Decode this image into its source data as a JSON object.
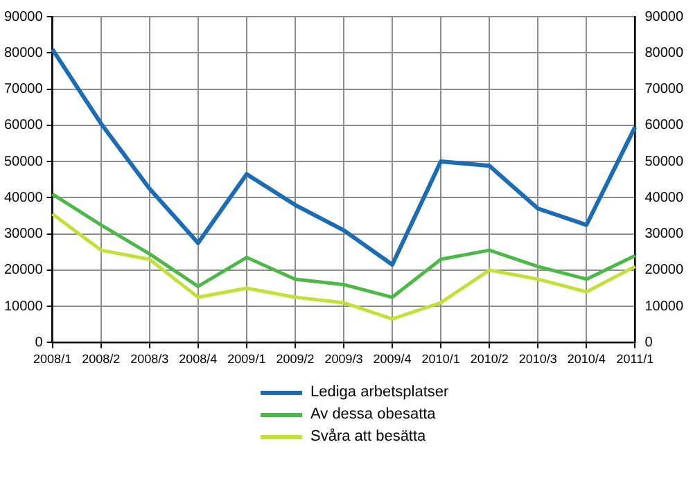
{
  "chart_data": {
    "type": "line",
    "categories": [
      "2008/1",
      "2008/2",
      "2008/3",
      "2008/4",
      "2009/1",
      "2009/2",
      "2009/3",
      "2009/4",
      "2010/1",
      "2010/2",
      "2010/3",
      "2010/4",
      "2011/1"
    ],
    "series": [
      {
        "name": "Lediga arbetsplatser",
        "color": "#1b6cb3",
        "values": [
          81000,
          60500,
          42500,
          27500,
          46500,
          38000,
          31000,
          21500,
          50000,
          48800,
          37000,
          32500,
          59500
        ]
      },
      {
        "name": "Av dessa obesatta",
        "color": "#4db848",
        "values": [
          41000,
          32500,
          24500,
          15500,
          23500,
          17500,
          16000,
          12500,
          23000,
          25500,
          21000,
          17500,
          24000
        ]
      },
      {
        "name": "Svåra att besätta",
        "color": "#c3e03a",
        "values": [
          35500,
          25500,
          23000,
          12500,
          15000,
          12500,
          11000,
          6500,
          11000,
          20000,
          17500,
          14000,
          21000
        ]
      }
    ],
    "ylim": [
      0,
      90000
    ],
    "yticks": [
      0,
      10000,
      20000,
      30000,
      40000,
      50000,
      60000,
      70000,
      80000,
      90000
    ],
    "y2lim": [
      0,
      90000
    ],
    "y2ticks": [
      0,
      10000,
      20000,
      30000,
      40000,
      50000,
      60000,
      70000,
      80000,
      90000
    ],
    "grid": true,
    "legend": "bottom",
    "marker": "none",
    "line_style": "solid"
  }
}
